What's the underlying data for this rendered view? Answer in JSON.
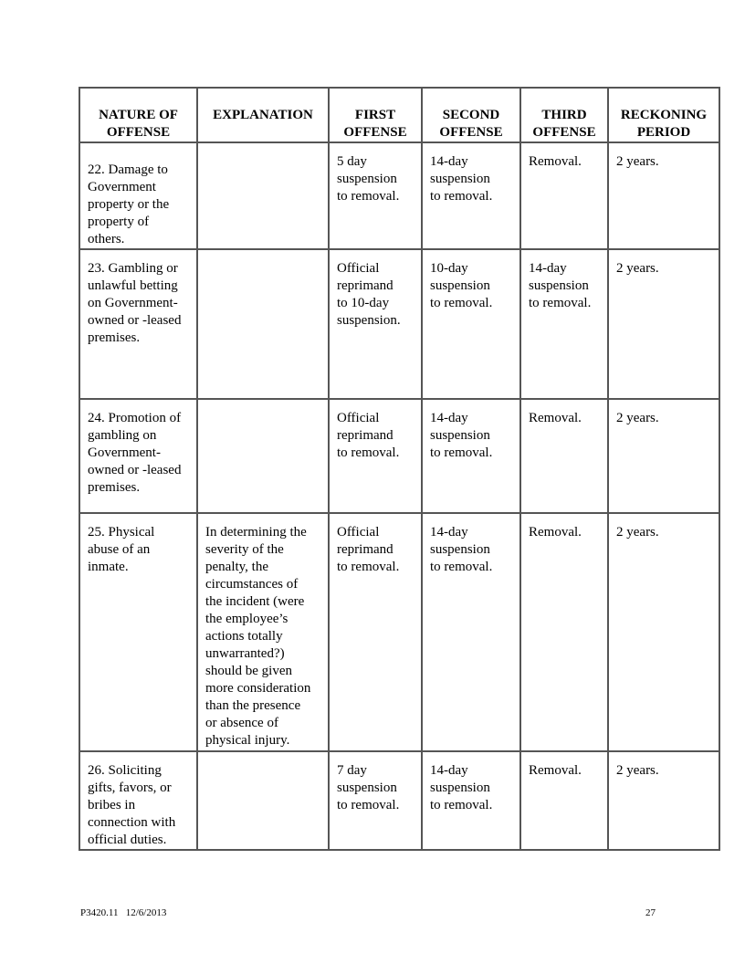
{
  "table": {
    "headers": [
      "NATURE OF\nOFFENSE",
      "EXPLANATION",
      "FIRST\nOFFENSE",
      "SECOND\nOFFENSE",
      "THIRD\nOFFENSE",
      "RECKONING\nPERIOD"
    ],
    "rows": [
      [
        "22. Damage to\nGovernment\nproperty or the\nproperty of\nothers.",
        "",
        "5 day\nsuspension\nto removal.",
        "14-day\nsuspension\nto removal.",
        "Removal.",
        "2 years."
      ],
      [
        "23. Gambling or\nunlawful betting\non Government-\nowned or -leased\npremises.",
        "",
        "Official\nreprimand\nto 10-day\nsuspension.",
        "10-day\nsuspension\nto removal.",
        "14-day\nsuspension\nto removal.",
        "2 years."
      ],
      [
        "24. Promotion of\ngambling on\nGovernment-\nowned or -leased\npremises.",
        "",
        "Official\nreprimand\nto removal.",
        "14-day\nsuspension\nto removal.",
        "Removal.",
        "2 years."
      ],
      [
        "25. Physical\nabuse of an\ninmate.",
        "In determining the\nseverity of the\npenalty, the\ncircumstances of\nthe incident (were\nthe employee’s\nactions totally\nunwarranted?)\nshould be given\nmore consideration\nthan the presence\nor absence of\nphysical injury.",
        "Official\nreprimand\nto removal.",
        "14-day\nsuspension\nto removal.",
        "Removal.",
        "2 years."
      ],
      [
        "26. Soliciting\ngifts, favors, or\nbribes in\nconnection with\nofficial duties.",
        "",
        "7 day\nsuspension\nto removal.",
        "14-day\nsuspension\nto removal.",
        "Removal.",
        "2 years."
      ]
    ]
  },
  "footer": {
    "doc_id": "P3420.11   12/6/2013",
    "page_number": "27"
  }
}
